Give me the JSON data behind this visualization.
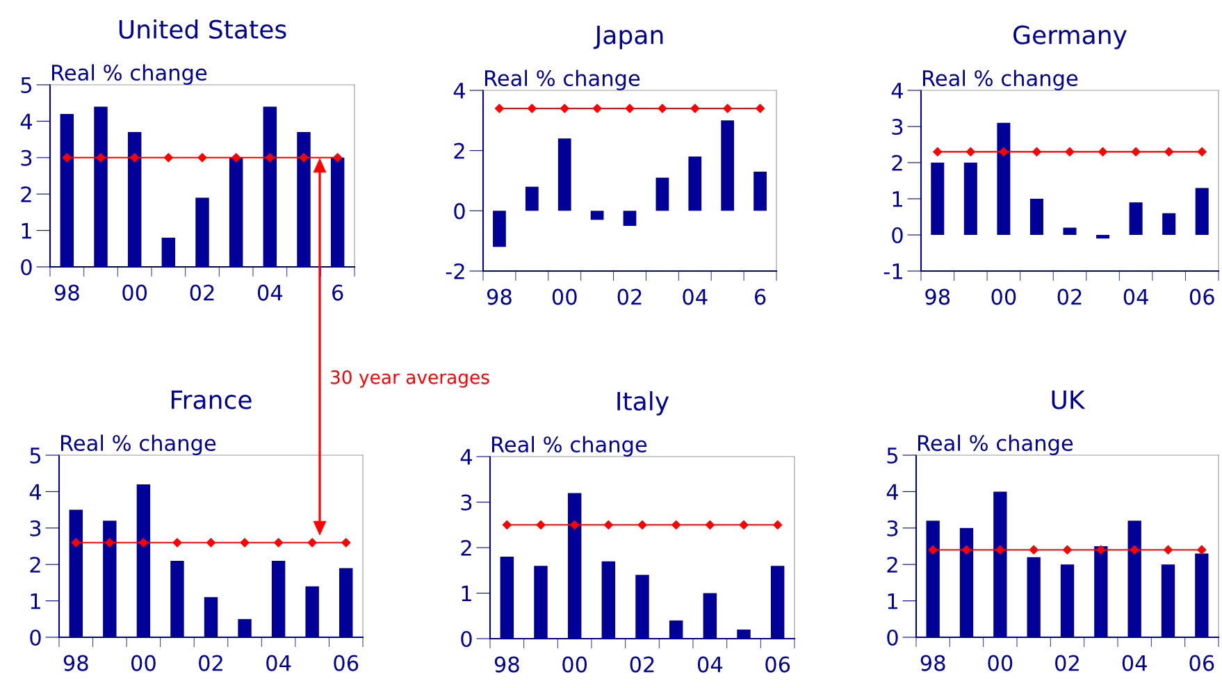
{
  "chart_data": [
    {
      "type": "bar",
      "title": "United States",
      "ylabel": "Real % change",
      "categories": [
        "98",
        null,
        "00",
        null,
        "02",
        null,
        "04",
        null,
        "6"
      ],
      "ylim": [
        0,
        5
      ],
      "yticks": [
        0,
        1,
        2,
        3,
        4,
        5
      ],
      "grid": false,
      "annotations": [
        "30 year averages"
      ],
      "series": [
        {
          "type": "bar",
          "color": "#000099",
          "values": [
            4.2,
            4.4,
            3.7,
            0.8,
            1.9,
            3.0,
            4.4,
            3.7,
            3.0
          ]
        },
        {
          "type": "line",
          "color": "#ff0000",
          "marker": "diamond",
          "values": [
            3.0,
            3.0,
            3.0,
            3.0,
            3.0,
            3.0,
            3.0,
            3.0,
            3.0
          ]
        }
      ]
    },
    {
      "type": "bar",
      "title": "Japan",
      "ylabel": "Real % change",
      "categories": [
        "98",
        null,
        "00",
        null,
        "02",
        null,
        "04",
        null,
        "6"
      ],
      "ylim": [
        -2,
        4
      ],
      "yticks": [
        -2,
        0,
        2,
        4
      ],
      "grid": false,
      "series": [
        {
          "type": "bar",
          "color": "#000099",
          "values": [
            -1.2,
            0.8,
            2.4,
            -0.3,
            -0.5,
            1.1,
            1.8,
            3.0,
            1.3
          ]
        },
        {
          "type": "line",
          "color": "#ff0000",
          "marker": "diamond",
          "values": [
            3.4,
            3.4,
            3.4,
            3.4,
            3.4,
            3.4,
            3.4,
            3.4,
            3.4
          ]
        }
      ]
    },
    {
      "type": "bar",
      "title": "Germany",
      "ylabel": "Real % change",
      "categories": [
        "98",
        null,
        "00",
        null,
        "02",
        null,
        "04",
        null,
        "06"
      ],
      "ylim": [
        -1,
        4
      ],
      "yticks": [
        -1,
        0,
        1,
        2,
        3,
        4
      ],
      "grid": false,
      "series": [
        {
          "type": "bar",
          "color": "#000099",
          "values": [
            2.0,
            2.0,
            3.1,
            1.0,
            0.2,
            -0.1,
            0.9,
            0.6,
            1.3
          ]
        },
        {
          "type": "line",
          "color": "#ff0000",
          "marker": "diamond",
          "values": [
            2.3,
            2.3,
            2.3,
            2.3,
            2.3,
            2.3,
            2.3,
            2.3,
            2.3
          ]
        }
      ]
    },
    {
      "type": "bar",
      "title": "France",
      "ylabel": "Real % change",
      "categories": [
        "98",
        null,
        "00",
        null,
        "02",
        null,
        "04",
        null,
        "06"
      ],
      "ylim": [
        0,
        5
      ],
      "yticks": [
        0,
        1,
        2,
        3,
        4,
        5
      ],
      "grid": false,
      "series": [
        {
          "type": "bar",
          "color": "#000099",
          "values": [
            3.5,
            3.2,
            4.2,
            2.1,
            1.1,
            0.5,
            2.1,
            1.4,
            1.9
          ]
        },
        {
          "type": "line",
          "color": "#ff0000",
          "marker": "diamond",
          "values": [
            2.6,
            2.6,
            2.6,
            2.6,
            2.6,
            2.6,
            2.6,
            2.6,
            2.6
          ]
        }
      ]
    },
    {
      "type": "bar",
      "title": "Italy",
      "ylabel": "Real % change",
      "categories": [
        "98",
        null,
        "00",
        null,
        "02",
        null,
        "04",
        null,
        "06"
      ],
      "ylim": [
        0,
        4
      ],
      "yticks": [
        0,
        1,
        2,
        3,
        4
      ],
      "grid": false,
      "series": [
        {
          "type": "bar",
          "color": "#000099",
          "values": [
            1.8,
            1.6,
            3.2,
            1.7,
            1.4,
            0.4,
            1.0,
            0.2,
            1.6
          ]
        },
        {
          "type": "line",
          "color": "#ff0000",
          "marker": "diamond",
          "values": [
            2.5,
            2.5,
            2.5,
            2.5,
            2.5,
            2.5,
            2.5,
            2.5,
            2.5
          ]
        }
      ]
    },
    {
      "type": "bar",
      "title": "UK",
      "ylabel": "Real % change",
      "categories": [
        "98",
        null,
        "00",
        null,
        "02",
        null,
        "04",
        null,
        "06"
      ],
      "ylim": [
        0,
        5
      ],
      "yticks": [
        0,
        1,
        2,
        3,
        4,
        5
      ],
      "grid": false,
      "series": [
        {
          "type": "bar",
          "color": "#000099",
          "values": [
            3.2,
            3.0,
            4.0,
            2.2,
            2.0,
            2.5,
            3.2,
            2.0,
            2.3
          ]
        },
        {
          "type": "line",
          "color": "#ff0000",
          "marker": "diamond",
          "values": [
            2.4,
            2.4,
            2.4,
            2.4,
            2.4,
            2.4,
            2.4,
            2.4,
            2.4
          ]
        }
      ]
    }
  ]
}
